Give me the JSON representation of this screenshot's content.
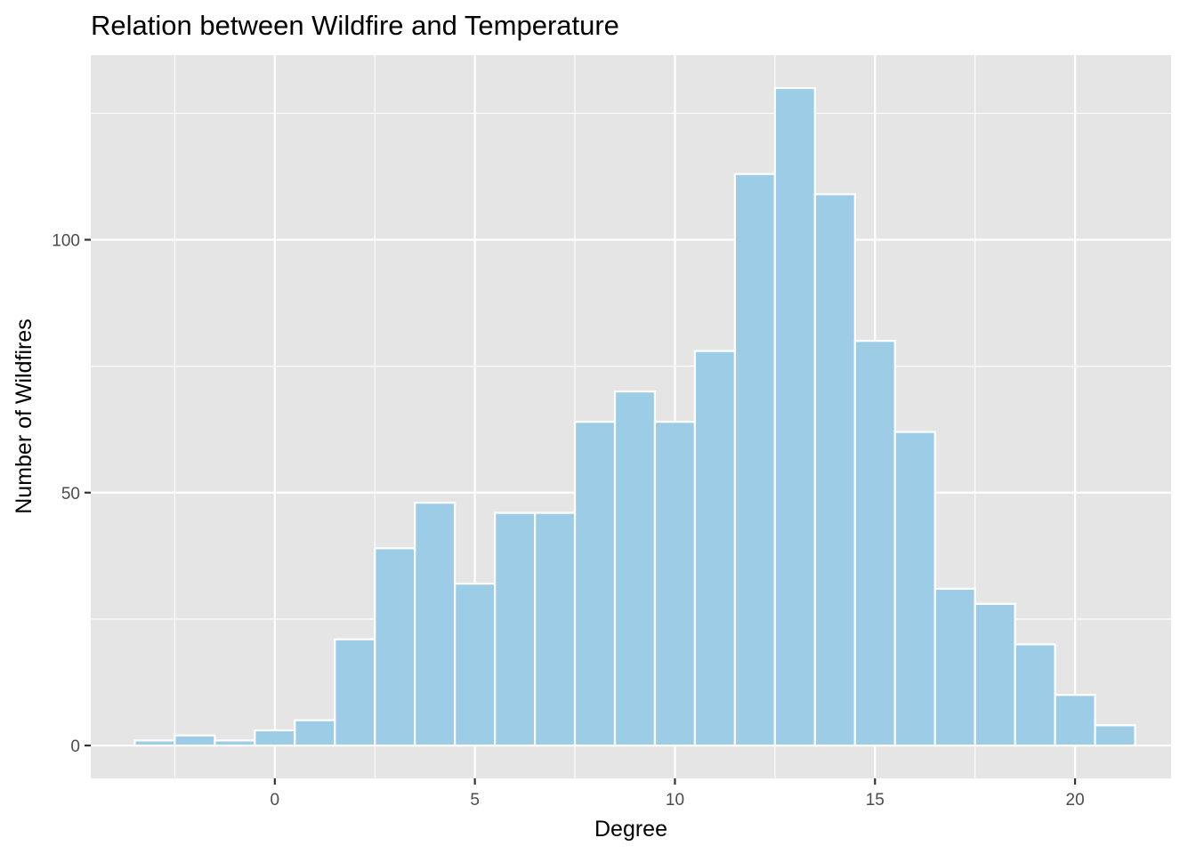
{
  "chart_data": {
    "type": "bar",
    "title": "Relation between Wildfire and Temperature",
    "xlabel": "Degree",
    "ylabel": "Number of Wildfires",
    "xlim": [
      -4.6,
      22.4
    ],
    "ylim": [
      -6.5,
      136.5
    ],
    "x_ticks": [
      0,
      5,
      10,
      15,
      20
    ],
    "y_ticks": [
      0,
      50,
      100
    ],
    "bin_width": 1,
    "bins": [
      -3,
      -2,
      -1,
      0,
      1,
      2,
      3,
      4,
      5,
      6,
      7,
      8,
      9,
      10,
      11,
      12,
      13,
      14,
      15,
      16,
      17,
      18,
      19,
      20,
      21
    ],
    "values": [
      1,
      2,
      1,
      3,
      5,
      21,
      39,
      48,
      32,
      46,
      46,
      64,
      70,
      64,
      78,
      113,
      130,
      109,
      80,
      62,
      31,
      28,
      20,
      10,
      4
    ],
    "grid": true,
    "colors": {
      "panel_background": "#e5e5e5",
      "grid_line": "#ffffff",
      "bar_fill": "#9dcde6",
      "bar_outline": "#ffffff",
      "tick_label": "#4d4d4d",
      "tick_mark": "#333333"
    }
  }
}
